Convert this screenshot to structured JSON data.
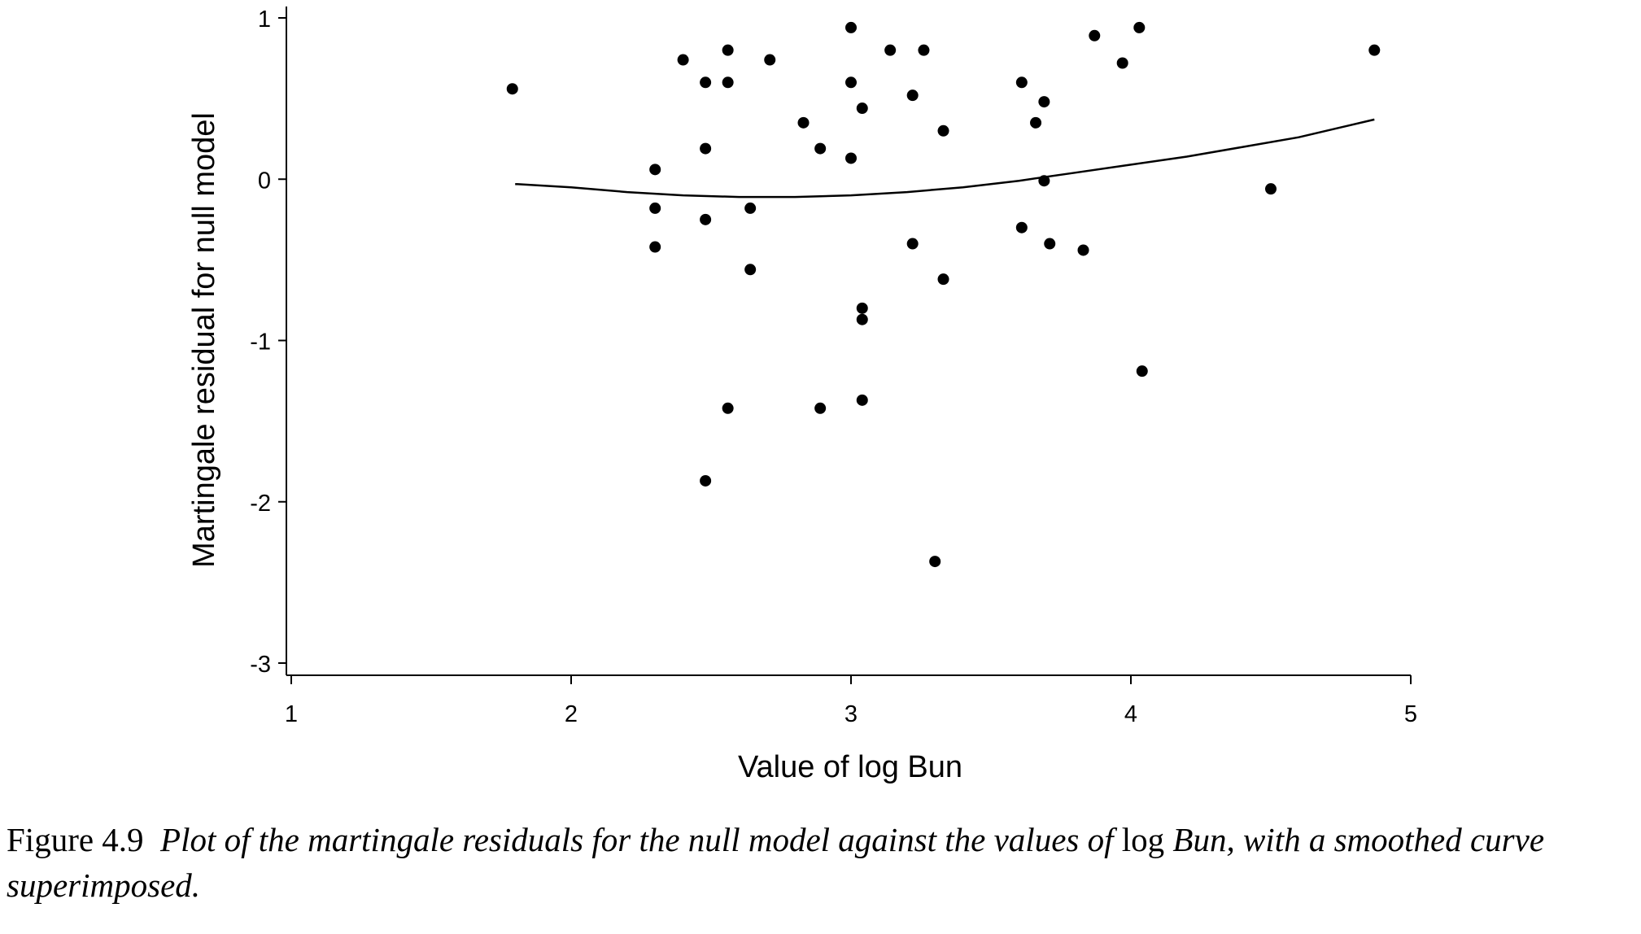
{
  "chart_data": {
    "type": "scatter",
    "xlabel": "Value of log Bun",
    "ylabel": "Martingale residual for null model",
    "xlim": [
      1,
      5
    ],
    "ylim": [
      -3,
      1
    ],
    "xticks": [
      1,
      2,
      3,
      4,
      5
    ],
    "yticks": [
      1,
      0,
      -1,
      -2,
      -3
    ],
    "grid": false,
    "points": [
      {
        "x": 1.79,
        "y": 0.56
      },
      {
        "x": 2.3,
        "y": 0.06
      },
      {
        "x": 2.3,
        "y": -0.18
      },
      {
        "x": 2.3,
        "y": -0.42
      },
      {
        "x": 2.4,
        "y": 0.74
      },
      {
        "x": 2.48,
        "y": 0.6
      },
      {
        "x": 2.48,
        "y": 0.19
      },
      {
        "x": 2.48,
        "y": -0.25
      },
      {
        "x": 2.48,
        "y": -1.87
      },
      {
        "x": 2.56,
        "y": 0.8
      },
      {
        "x": 2.56,
        "y": 0.6
      },
      {
        "x": 2.56,
        "y": -1.42
      },
      {
        "x": 2.64,
        "y": -0.18
      },
      {
        "x": 2.64,
        "y": -0.56
      },
      {
        "x": 2.71,
        "y": 0.74
      },
      {
        "x": 2.83,
        "y": 0.35
      },
      {
        "x": 2.89,
        "y": 0.19
      },
      {
        "x": 2.89,
        "y": -1.42
      },
      {
        "x": 3.0,
        "y": 0.94
      },
      {
        "x": 3.0,
        "y": 0.6
      },
      {
        "x": 3.0,
        "y": 0.13
      },
      {
        "x": 3.04,
        "y": 0.44
      },
      {
        "x": 3.04,
        "y": -0.8
      },
      {
        "x": 3.04,
        "y": -0.87
      },
      {
        "x": 3.04,
        "y": -1.37
      },
      {
        "x": 3.14,
        "y": 0.8
      },
      {
        "x": 3.22,
        "y": 0.52
      },
      {
        "x": 3.22,
        "y": -0.4
      },
      {
        "x": 3.26,
        "y": 0.8
      },
      {
        "x": 3.3,
        "y": -2.37
      },
      {
        "x": 3.33,
        "y": 0.3
      },
      {
        "x": 3.33,
        "y": -0.62
      },
      {
        "x": 3.61,
        "y": 0.6
      },
      {
        "x": 3.61,
        "y": -0.3
      },
      {
        "x": 3.66,
        "y": 0.35
      },
      {
        "x": 3.69,
        "y": 0.48
      },
      {
        "x": 3.69,
        "y": -0.01
      },
      {
        "x": 3.71,
        "y": -0.4
      },
      {
        "x": 3.83,
        "y": -0.44
      },
      {
        "x": 3.87,
        "y": 0.89
      },
      {
        "x": 3.97,
        "y": 0.72
      },
      {
        "x": 4.03,
        "y": 0.94
      },
      {
        "x": 4.04,
        "y": -1.19
      },
      {
        "x": 4.5,
        "y": -0.06
      },
      {
        "x": 4.87,
        "y": 0.8
      }
    ],
    "smooth_curve": {
      "x": [
        1.8,
        2.0,
        2.2,
        2.4,
        2.6,
        2.8,
        3.0,
        3.2,
        3.4,
        3.6,
        3.8,
        4.0,
        4.2,
        4.4,
        4.6,
        4.87
      ],
      "y": [
        -0.03,
        -0.05,
        -0.08,
        -0.1,
        -0.11,
        -0.11,
        -0.1,
        -0.08,
        -0.05,
        -0.01,
        0.04,
        0.09,
        0.14,
        0.2,
        0.26,
        0.37
      ]
    }
  },
  "caption": {
    "label": "Figure 4.9",
    "text_part1": "Plot of the martingale residuals for the null model against the values of",
    "math_part": "log",
    "text_part2": "Bun, with a smoothed curve superimposed."
  },
  "colors": {
    "ink": "#000000",
    "background": "#ffffff"
  }
}
